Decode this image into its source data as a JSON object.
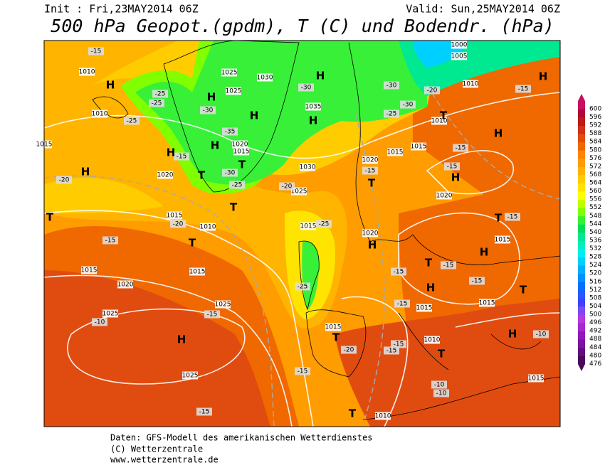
{
  "header": {
    "init": "Init : Fri,23MAY2014 06Z",
    "valid": "Valid: Sun,25MAY2014 06Z",
    "title": "500 hPa Geopot.(gpdm), T (C) und Bodendr. (hPa)"
  },
  "colorbar": {
    "levels": [
      476,
      480,
      484,
      488,
      492,
      496,
      500,
      504,
      508,
      512,
      516,
      520,
      524,
      528,
      532,
      536,
      540,
      544,
      548,
      552,
      556,
      560,
      564,
      568,
      572,
      576,
      580,
      584,
      588,
      592,
      596,
      600
    ],
    "colors": [
      "#4a0a5a",
      "#620e80",
      "#7a14a0",
      "#9018b8",
      "#a828d0",
      "#b838e0",
      "#8048f0",
      "#4040ff",
      "#2858ff",
      "#0070ff",
      "#0090ff",
      "#00b0ff",
      "#00d0ff",
      "#00f0f0",
      "#00f0c0",
      "#00e890",
      "#00e060",
      "#38f038",
      "#80ff00",
      "#c0ff00",
      "#ffff00",
      "#ffe400",
      "#ffcc00",
      "#ffb400",
      "#ff9c00",
      "#ff8400",
      "#f06800",
      "#e04c10",
      "#d03018",
      "#c01818",
      "#b00838",
      "#c81060"
    ]
  },
  "map": {
    "centers": [
      "H",
      "H",
      "H",
      "H",
      "H",
      "H",
      "H",
      "H",
      "H",
      "H",
      "H",
      "H",
      "H",
      "H",
      "H",
      "H",
      "T",
      "T",
      "T",
      "T",
      "T",
      "T",
      "T",
      "T",
      "T",
      "T",
      "T",
      "T",
      "T"
    ],
    "isobars": [
      1010,
      1025,
      1030,
      1025,
      1035,
      1010,
      1020,
      1015,
      1015,
      1030,
      1020,
      1025,
      1015,
      1010,
      1015,
      1015,
      1015,
      1020,
      1025,
      1025,
      1020,
      1015,
      1015,
      1010,
      1010,
      1005,
      1000,
      1020,
      1015,
      1015,
      1015,
      1015,
      1010,
      1025,
      1010,
      1015,
      1020
    ],
    "temperatures": [
      -15,
      -25,
      -25,
      -30,
      -35,
      -30,
      -25,
      -30,
      -30,
      -30,
      -20,
      -15,
      -25,
      -25,
      -20,
      -15,
      -20,
      -15,
      -15,
      -20,
      -15,
      -15,
      -15,
      -15,
      -15,
      -15,
      -15,
      -25,
      -25,
      -15,
      -10,
      -20,
      -15,
      -15,
      -15,
      -10,
      -10,
      -15,
      -10
    ]
  },
  "footer": {
    "line1": "Daten: GFS-Modell des amerikanischen Wetterdienstes",
    "line2": "(C) Wetterzentrale",
    "line3": "www.wetterzentrale.de"
  }
}
